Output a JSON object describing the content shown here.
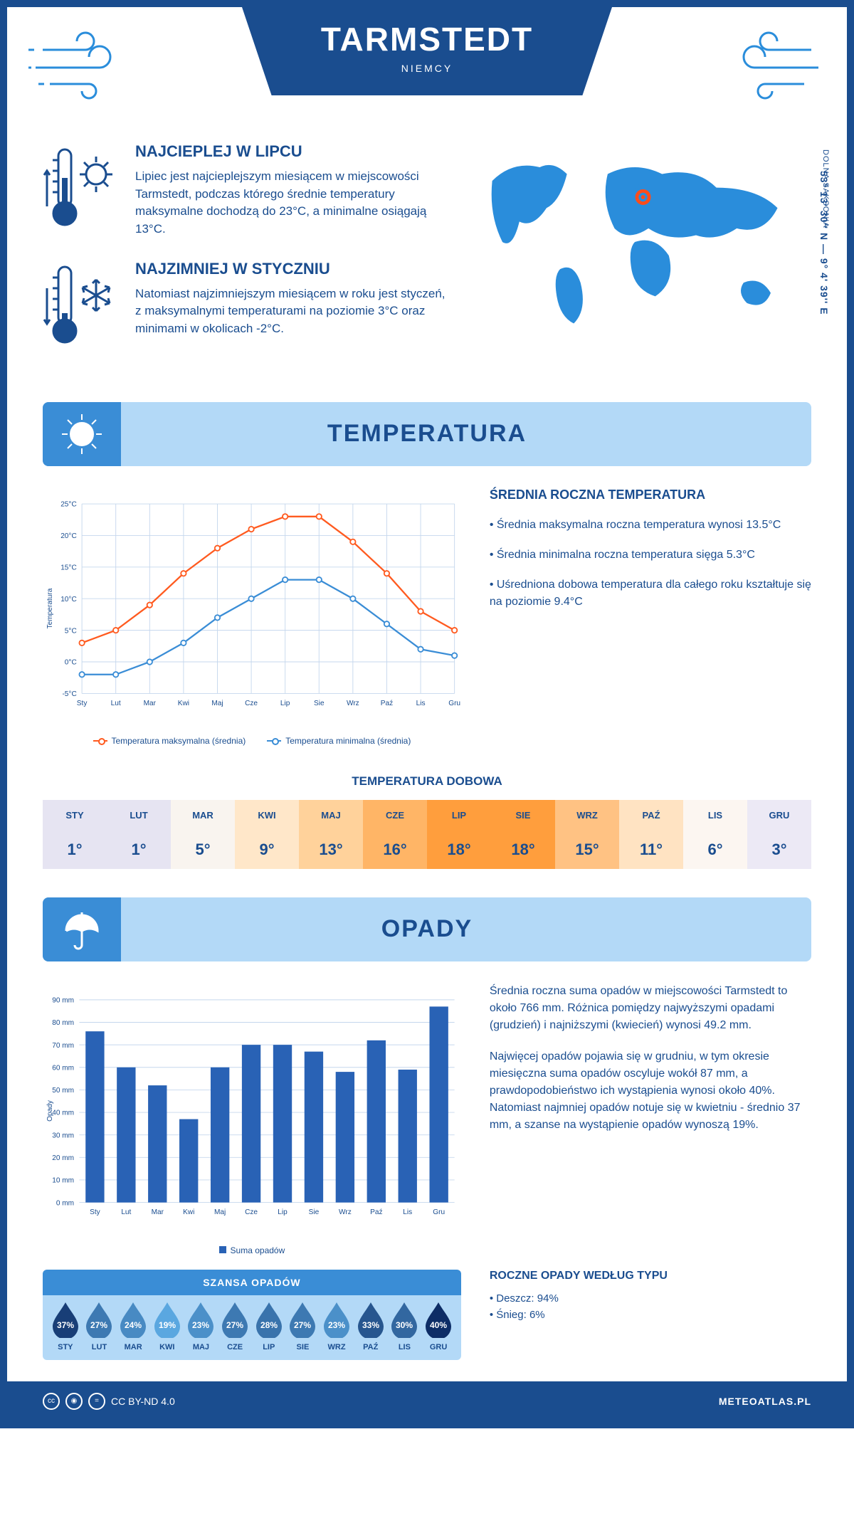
{
  "header": {
    "city": "TARMSTEDT",
    "country": "NIEMCY"
  },
  "location": {
    "coords": "53° 13' 30'' N — 9° 4' 39'' E",
    "region": "DOLNA SAKSONIA",
    "marker_color": "#ff4d1a",
    "map_color": "#2a8ddb"
  },
  "facts": {
    "warm": {
      "title": "NAJCIEPLEJ W LIPCU",
      "text": "Lipiec jest najcieplejszym miesiącem w miejscowości Tarmstedt, podczas którego średnie temperatury maksymalne dochodzą do 23°C, a minimalne osiągają 13°C."
    },
    "cold": {
      "title": "NAJZIMNIEJ W STYCZNIU",
      "text": "Natomiast najzimniejszym miesiącem w roku jest styczeń, z maksymalnymi temperaturami na poziomie 3°C oraz minimami w okolicach -2°C."
    }
  },
  "temperature_section": {
    "title": "TEMPERATURA",
    "chart": {
      "type": "line",
      "months": [
        "Sty",
        "Lut",
        "Mar",
        "Kwi",
        "Maj",
        "Cze",
        "Lip",
        "Sie",
        "Wrz",
        "Paź",
        "Lis",
        "Gru"
      ],
      "y_axis_label": "Temperatura",
      "ylim": [
        -5,
        25
      ],
      "ytick_step": 5,
      "ytick_labels": [
        "-5°C",
        "0°C",
        "5°C",
        "10°C",
        "15°C",
        "20°C",
        "25°C"
      ],
      "grid_color": "#c5d7ed",
      "background": "#ffffff",
      "series": [
        {
          "name": "Temperatura maksymalna (średnia)",
          "color": "#ff5a1f",
          "values": [
            3,
            5,
            9,
            14,
            18,
            21,
            23,
            23,
            19,
            14,
            8,
            5
          ]
        },
        {
          "name": "Temperatura minimalna (średnia)",
          "color": "#3a8dd6",
          "values": [
            -2,
            -2,
            0,
            3,
            7,
            10,
            13,
            13,
            10,
            6,
            2,
            1
          ]
        }
      ]
    },
    "side": {
      "title": "ŚREDNIA ROCZNA TEMPERATURA",
      "bullets": [
        "• Średnia maksymalna roczna temperatura wynosi 13.5°C",
        "• Średnia minimalna roczna temperatura sięga 5.3°C",
        "• Uśredniona dobowa temperatura dla całego roku kształtuje się na poziomie 9.4°C"
      ]
    },
    "daily": {
      "title": "TEMPERATURA DOBOWA",
      "months": [
        "STY",
        "LUT",
        "MAR",
        "KWI",
        "MAJ",
        "CZE",
        "LIP",
        "SIE",
        "WRZ",
        "PAŹ",
        "LIS",
        "GRU"
      ],
      "values": [
        "1°",
        "1°",
        "5°",
        "9°",
        "13°",
        "16°",
        "18°",
        "18°",
        "15°",
        "11°",
        "6°",
        "3°"
      ],
      "colors": [
        "#e6e4f2",
        "#e6e4f2",
        "#f9f4ef",
        "#ffe7c9",
        "#ffd29b",
        "#ffb566",
        "#ff9e3d",
        "#ff9e3d",
        "#ffc283",
        "#ffe3c2",
        "#fcf6f1",
        "#ece9f5"
      ]
    }
  },
  "precip_section": {
    "title": "OPADY",
    "chart": {
      "type": "bar",
      "months": [
        "Sty",
        "Lut",
        "Mar",
        "Kwi",
        "Maj",
        "Cze",
        "Lip",
        "Sie",
        "Wrz",
        "Paź",
        "Lis",
        "Gru"
      ],
      "y_axis_label": "Opady",
      "ylim": [
        0,
        90
      ],
      "ytick_step": 10,
      "bar_color": "#2962b5",
      "grid_color": "#c5d7ed",
      "legend": "Suma opadów",
      "values": [
        76,
        60,
        52,
        37,
        60,
        70,
        70,
        67,
        58,
        72,
        59,
        87
      ]
    },
    "side": {
      "paragraphs": [
        "Średnia roczna suma opadów w miejscowości Tarmstedt to około 766 mm. Różnica pomiędzy najwyższymi opadami (grudzień) i najniższymi (kwiecień) wynosi 49.2 mm.",
        "Najwięcej opadów pojawia się w grudniu, w tym okresie miesięczna suma opadów oscyluje wokół 87 mm, a prawdopodobieństwo ich wystąpienia wynosi około 40%. Natomiast najmniej opadów notuje się w kwietniu - średnio 37 mm, a szanse na wystąpienie opadów wynoszą 19%."
      ]
    },
    "chance": {
      "title": "SZANSA OPADÓW",
      "months": [
        "STY",
        "LUT",
        "MAR",
        "KWI",
        "MAJ",
        "CZE",
        "LIP",
        "SIE",
        "WRZ",
        "PAŹ",
        "LIS",
        "GRU"
      ],
      "values": [
        37,
        27,
        24,
        19,
        23,
        27,
        28,
        27,
        23,
        33,
        30,
        40
      ],
      "min_color": "#5aa7e0",
      "max_color": "#0d2d66"
    },
    "types": {
      "title": "ROCZNE OPADY WEDŁUG TYPU",
      "items": [
        "• Deszcz: 94%",
        "• Śnieg: 6%"
      ]
    }
  },
  "footer": {
    "license": "CC BY-ND 4.0",
    "site": "METEOATLAS.PL"
  }
}
